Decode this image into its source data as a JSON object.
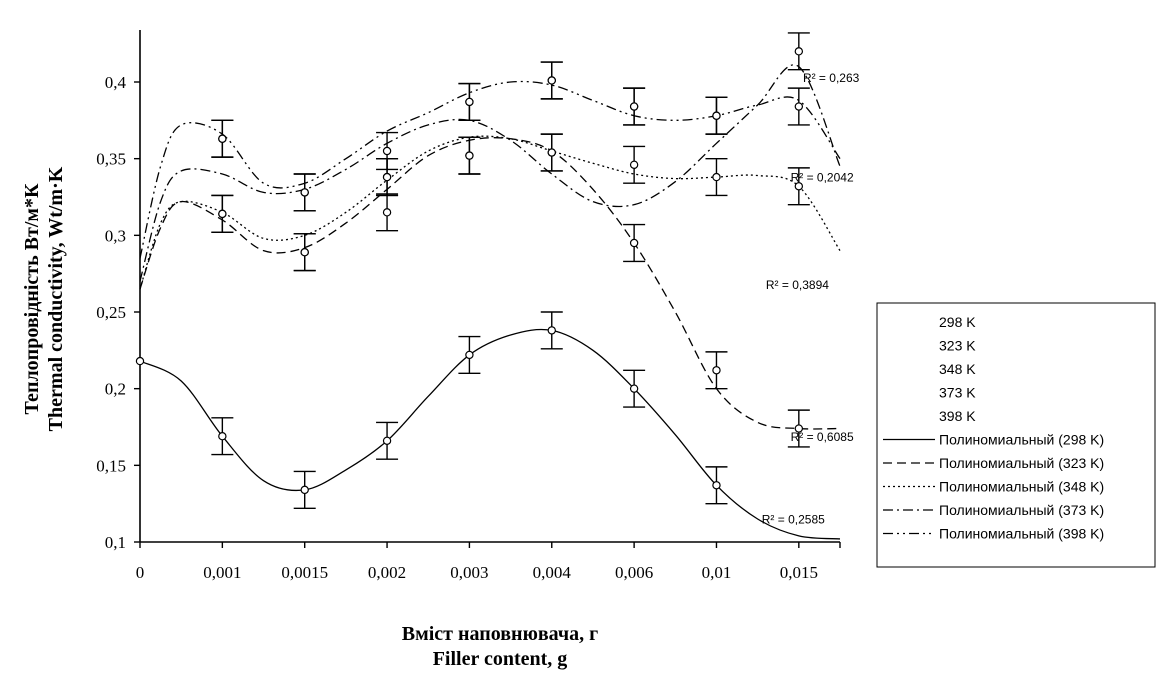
{
  "chart_data": {
    "type": "line",
    "xlabel": [
      "Вміст наповнювача, г",
      "Filler content, g"
    ],
    "ylabel": [
      "Теплопровідність Вт/м*К",
      "Thermal conductivity,  Wt/m·K"
    ],
    "categories": [
      "0",
      "0,001",
      "0,0015",
      "0,002",
      "0,003",
      "0,004",
      "0,006",
      "0,01",
      "0,015"
    ],
    "ylim": [
      0.1,
      0.43
    ],
    "yticks": [
      0.1,
      0.15,
      0.2,
      0.25,
      0.3,
      0.35,
      0.4
    ],
    "ytick_labels": [
      "0,1",
      "0,15",
      "0,2",
      "0,25",
      "0,3",
      "0,35",
      "0,4"
    ],
    "grid": false,
    "legend_position": "right",
    "error_bar": 0.012,
    "series": [
      {
        "name": "298 K",
        "x": [
          0,
          1,
          2,
          3,
          4,
          5,
          6,
          7,
          8
        ],
        "values": [
          0.218,
          0.169,
          0.134,
          0.166,
          0.222,
          0.238,
          0.2,
          0.137,
          null
        ]
      },
      {
        "name": "323 K",
        "x": [
          1,
          2,
          3,
          4,
          5,
          6,
          7,
          8
        ],
        "values": [
          0.314,
          0.289,
          0.315,
          0.352,
          0.354,
          0.295,
          0.212,
          0.174
        ]
      },
      {
        "name": "348 K",
        "x": [
          1,
          2,
          3,
          4,
          5,
          6,
          7,
          8
        ],
        "values": [
          0.314,
          0.289,
          0.338,
          0.352,
          0.354,
          0.346,
          0.338,
          0.332
        ]
      },
      {
        "name": "373 K",
        "x": [
          1,
          2,
          3,
          4,
          5,
          6,
          7,
          8
        ],
        "values": [
          0.363,
          0.328,
          0.355,
          0.387,
          0.401,
          0.384,
          0.378,
          0.42
        ]
      },
      {
        "name": "398 K",
        "x": [
          1,
          2,
          3,
          4,
          5,
          6,
          7,
          8
        ],
        "values": [
          0.363,
          0.328,
          0.338,
          0.387,
          0.401,
          0.384,
          0.378,
          0.384
        ]
      }
    ],
    "trendlines": [
      {
        "name": "Полиномиальный (298 K)",
        "dash": "",
        "r2": "R² = 0,2585",
        "x": [
          0,
          0.5,
          1,
          1.5,
          2,
          2.5,
          3,
          3.5,
          4,
          4.5,
          5,
          5.5,
          6,
          6.5,
          7,
          7.5,
          8,
          8.5
        ],
        "values": [
          0.218,
          0.205,
          0.169,
          0.14,
          0.134,
          0.147,
          0.166,
          0.195,
          0.222,
          0.235,
          0.238,
          0.225,
          0.2,
          0.17,
          0.137,
          0.115,
          0.104,
          0.102
        ]
      },
      {
        "name": "Полиномиальный (323 K)",
        "dash": "9 5",
        "r2": "R² = 0,6085",
        "x": [
          0,
          0.25,
          0.5,
          1,
          1.5,
          2,
          2.5,
          3,
          3.5,
          4,
          4.5,
          5,
          5.5,
          6,
          6.5,
          7,
          7.5,
          8,
          8.5
        ],
        "values": [
          0.265,
          0.305,
          0.322,
          0.31,
          0.29,
          0.292,
          0.308,
          0.33,
          0.352,
          0.362,
          0.363,
          0.355,
          0.33,
          0.295,
          0.25,
          0.2,
          0.178,
          0.174,
          0.174
        ]
      },
      {
        "name": "Полиномиальный (348 K)",
        "dash": "2 3",
        "r2": "R² = 0,3894",
        "x": [
          0,
          0.25,
          0.5,
          1,
          1.5,
          2,
          2.5,
          3,
          3.5,
          4,
          4.5,
          5,
          5.5,
          6,
          6.5,
          7,
          7.5,
          8,
          8.5
        ],
        "values": [
          0.265,
          0.308,
          0.322,
          0.315,
          0.298,
          0.3,
          0.315,
          0.336,
          0.355,
          0.364,
          0.363,
          0.355,
          0.347,
          0.34,
          0.337,
          0.338,
          0.339,
          0.332,
          0.29
        ]
      },
      {
        "name": "Полиномиальный (373 K)",
        "dash": "10 4 2 4",
        "r2": "R² = 0,2042",
        "x": [
          0,
          0.25,
          0.5,
          1,
          1.5,
          2,
          2.5,
          3,
          3.5,
          4,
          4.5,
          5,
          5.5,
          6,
          6.5,
          7,
          7.5,
          8,
          8.5
        ],
        "values": [
          0.27,
          0.322,
          0.342,
          0.34,
          0.328,
          0.33,
          0.343,
          0.36,
          0.372,
          0.375,
          0.362,
          0.34,
          0.322,
          0.32,
          0.335,
          0.36,
          0.385,
          0.41,
          0.345
        ]
      },
      {
        "name": "Полиномиальный (398 K)",
        "dash": "10 4 2 4 2 4",
        "r2": "R² = 0,263",
        "x": [
          0,
          0.25,
          0.5,
          1,
          1.5,
          2,
          2.5,
          3,
          3.5,
          4,
          4.5,
          5,
          5.5,
          6,
          6.5,
          7,
          7.5,
          8,
          8.5
        ],
        "values": [
          0.285,
          0.345,
          0.372,
          0.366,
          0.334,
          0.334,
          0.35,
          0.368,
          0.38,
          0.393,
          0.4,
          0.398,
          0.388,
          0.378,
          0.375,
          0.378,
          0.385,
          0.388,
          0.35
        ]
      }
    ]
  }
}
